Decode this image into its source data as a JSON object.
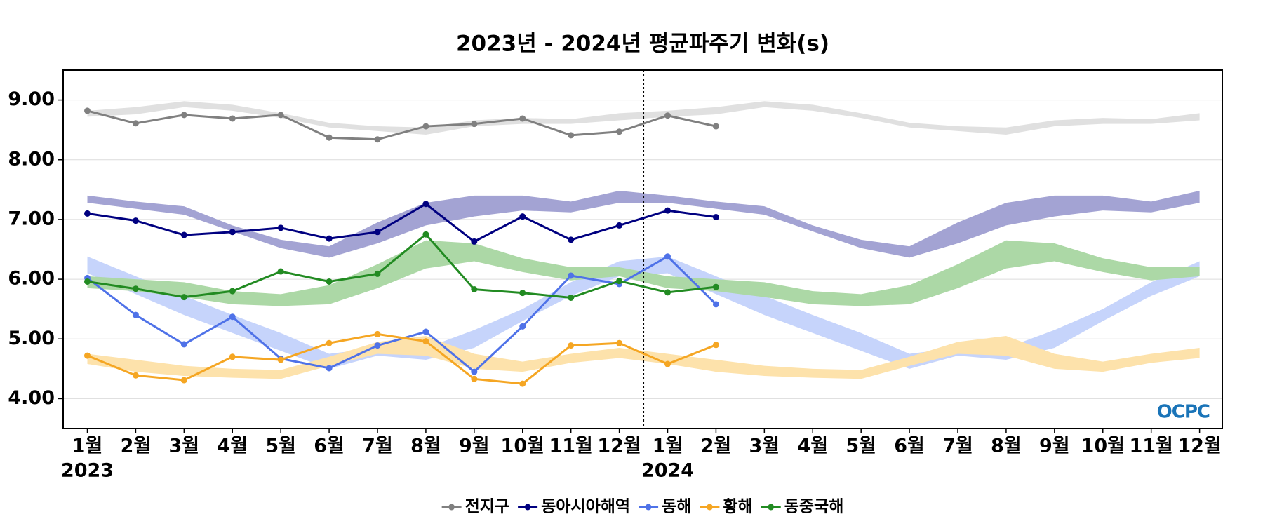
{
  "chart_data": {
    "type": "line",
    "title": "2023년 - 2024년 평균파주기 변화(s)",
    "categories": [
      "1월",
      "2월",
      "3월",
      "4월",
      "5월",
      "6월",
      "7월",
      "8월",
      "9월",
      "10월",
      "11월",
      "12월",
      "1월",
      "2월",
      "3월",
      "4월",
      "5월",
      "6월",
      "7월",
      "8월",
      "9월",
      "10월",
      "11월",
      "12월"
    ],
    "years": [
      "2023",
      "2024"
    ],
    "logo": "OCPC",
    "ylim": [
      3.5,
      9.5
    ],
    "yticks": [
      {
        "value": 4,
        "label": "4.00"
      },
      {
        "value": 5,
        "label": "5.00"
      },
      {
        "value": 6,
        "label": "6.00"
      },
      {
        "value": 7,
        "label": "7.00"
      },
      {
        "value": 8,
        "label": "8.00"
      },
      {
        "value": 9,
        "label": "9.00"
      }
    ],
    "grid": true,
    "legend": "bottom",
    "series": [
      {
        "name": "전지구",
        "color": "#808080",
        "band_color": "#e0e0e0",
        "values": [
          8.82,
          8.61,
          8.75,
          8.69,
          8.75,
          8.37,
          8.34,
          8.56,
          8.6,
          8.69,
          8.41,
          8.47,
          8.74,
          8.56,
          null,
          null,
          null,
          null,
          null,
          null,
          null,
          null,
          null,
          null
        ],
        "band_upper": [
          8.82,
          8.88,
          8.98,
          8.92,
          8.78,
          8.62,
          8.56,
          8.54,
          8.66,
          8.7,
          8.68,
          8.78,
          8.82,
          8.88,
          8.98,
          8.92,
          8.78,
          8.62,
          8.56,
          8.54,
          8.66,
          8.7,
          8.68,
          8.78
        ],
        "band_lower": [
          8.72,
          8.76,
          8.88,
          8.82,
          8.7,
          8.54,
          8.48,
          8.42,
          8.56,
          8.6,
          8.6,
          8.66,
          8.72,
          8.76,
          8.88,
          8.82,
          8.7,
          8.54,
          8.48,
          8.42,
          8.56,
          8.6,
          8.6,
          8.66
        ]
      },
      {
        "name": "동아시아해역",
        "color": "#000080",
        "band_color": "#a3a3d3",
        "values": [
          7.1,
          6.98,
          6.74,
          6.79,
          6.86,
          6.68,
          6.79,
          7.26,
          6.63,
          7.05,
          6.66,
          6.9,
          7.15,
          7.04,
          null,
          null,
          null,
          null,
          null,
          null,
          null,
          null,
          null,
          null
        ],
        "band_upper": [
          7.4,
          7.3,
          7.22,
          6.9,
          6.66,
          6.55,
          6.95,
          7.28,
          7.4,
          7.4,
          7.3,
          7.48,
          7.4,
          7.3,
          7.22,
          6.9,
          6.66,
          6.55,
          6.95,
          7.28,
          7.4,
          7.4,
          7.3,
          7.48
        ],
        "band_lower": [
          7.28,
          7.18,
          7.08,
          6.8,
          6.52,
          6.36,
          6.6,
          6.9,
          7.05,
          7.15,
          7.12,
          7.28,
          7.28,
          7.18,
          7.08,
          6.8,
          6.52,
          6.36,
          6.6,
          6.9,
          7.05,
          7.15,
          7.12,
          7.28
        ]
      },
      {
        "name": "동해",
        "color": "#4f72e8",
        "band_color": "#c6d4fb",
        "values": [
          6.02,
          5.4,
          4.91,
          5.37,
          4.67,
          4.51,
          4.89,
          5.12,
          4.45,
          5.21,
          6.06,
          5.92,
          6.38,
          5.58,
          null,
          null,
          null,
          null,
          null,
          null,
          null,
          null,
          null,
          null
        ],
        "band_upper": [
          6.38,
          6.05,
          5.72,
          5.4,
          5.1,
          4.75,
          4.85,
          4.85,
          5.15,
          5.5,
          5.95,
          6.3,
          6.38,
          6.05,
          5.72,
          5.4,
          5.1,
          4.75,
          4.85,
          4.85,
          5.15,
          5.5,
          5.95,
          6.3
        ],
        "band_lower": [
          6.1,
          5.75,
          5.4,
          5.1,
          4.8,
          4.5,
          4.72,
          4.65,
          4.85,
          5.3,
          5.72,
          6.05,
          6.1,
          5.75,
          5.4,
          5.1,
          4.8,
          4.5,
          4.72,
          4.65,
          4.85,
          5.3,
          5.72,
          6.05
        ]
      },
      {
        "name": "황해",
        "color": "#f5a623",
        "band_color": "#fde2ab",
        "values": [
          4.72,
          4.39,
          4.31,
          4.7,
          4.65,
          4.93,
          5.08,
          4.96,
          4.33,
          4.25,
          4.89,
          4.93,
          4.58,
          4.9,
          null,
          null,
          null,
          null,
          null,
          null,
          null,
          null,
          null,
          null
        ],
        "band_upper": [
          4.75,
          4.65,
          4.55,
          4.5,
          4.48,
          4.7,
          4.95,
          5.05,
          4.75,
          4.62,
          4.75,
          4.85,
          4.75,
          4.65,
          4.55,
          4.5,
          4.48,
          4.7,
          4.95,
          5.05,
          4.75,
          4.62,
          4.75,
          4.85
        ],
        "band_lower": [
          4.58,
          4.45,
          4.38,
          4.35,
          4.33,
          4.55,
          4.75,
          4.72,
          4.5,
          4.45,
          4.6,
          4.68,
          4.58,
          4.45,
          4.38,
          4.35,
          4.33,
          4.55,
          4.75,
          4.72,
          4.5,
          4.45,
          4.6,
          4.68
        ]
      },
      {
        "name": "동중국해",
        "color": "#228b22",
        "band_color": "#acd8a6",
        "values": [
          5.96,
          5.84,
          5.7,
          5.8,
          6.13,
          5.96,
          6.09,
          6.75,
          5.83,
          5.77,
          5.69,
          5.97,
          5.78,
          5.87,
          null,
          null,
          null,
          null,
          null,
          null,
          null,
          null,
          null,
          null
        ],
        "band_upper": [
          6.05,
          6.0,
          5.95,
          5.8,
          5.75,
          5.9,
          6.25,
          6.65,
          6.6,
          6.35,
          6.2,
          6.2,
          6.05,
          6.0,
          5.95,
          5.8,
          5.75,
          5.9,
          6.25,
          6.65,
          6.6,
          6.35,
          6.2,
          6.2
        ],
        "band_lower": [
          5.85,
          5.8,
          5.7,
          5.58,
          5.55,
          5.58,
          5.85,
          6.18,
          6.3,
          6.12,
          5.98,
          6.05,
          5.85,
          5.8,
          5.7,
          5.58,
          5.55,
          5.58,
          5.85,
          6.18,
          6.3,
          6.12,
          5.98,
          6.05
        ]
      }
    ]
  }
}
